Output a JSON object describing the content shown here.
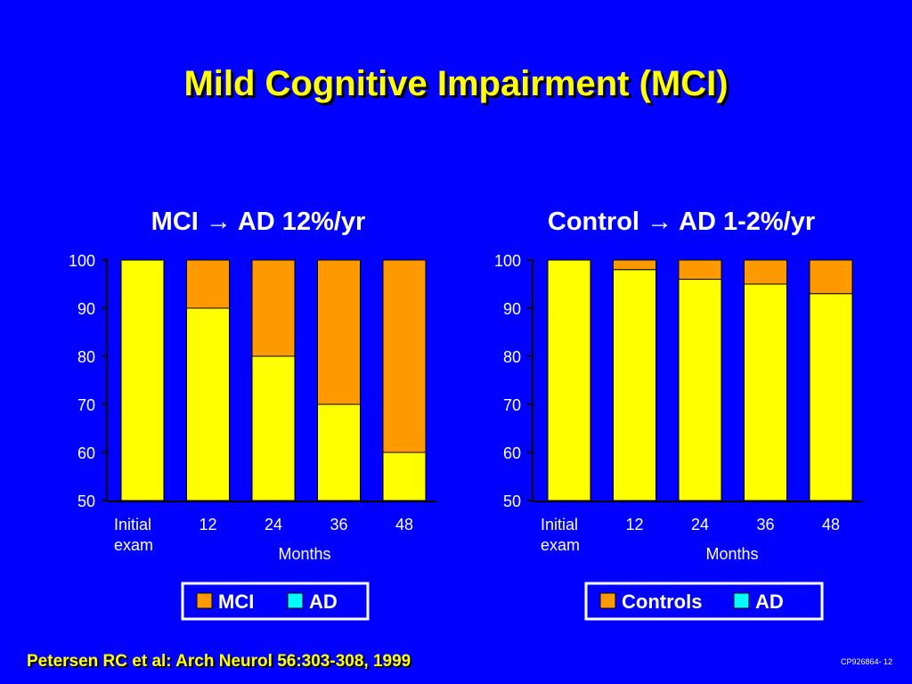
{
  "slide": {
    "title": "Mild Cognitive Impairment (MCI)",
    "footer": "Petersen RC et al: Arch Neurol 56:303-308, 1999",
    "code": "CP926864- 12"
  },
  "colors": {
    "background": "#0000ff",
    "title": "#ffff00",
    "bar_bottom": "#ffff00",
    "bar_top": "#ff9900",
    "legend_ad": "#00ffff"
  },
  "chart_data": [
    {
      "type": "bar",
      "stacked": true,
      "title": "MCI → AD 12%/yr",
      "categories": [
        "Initial\nexam",
        "12",
        "24",
        "36",
        "48"
      ],
      "xlabel": "Months",
      "ylabel": "",
      "ylim": [
        50,
        100
      ],
      "yticks": [
        100,
        90,
        80,
        70,
        60,
        50
      ],
      "values": [
        100,
        90,
        80,
        70,
        60
      ],
      "legend": [
        "MCI",
        "AD"
      ],
      "legend_colors": [
        "#ff9900",
        "#00ffff"
      ]
    },
    {
      "type": "bar",
      "stacked": true,
      "title": "Control → AD 1-2%/yr",
      "categories": [
        "Initial\nexam",
        "12",
        "24",
        "36",
        "48"
      ],
      "xlabel": "Months",
      "ylabel": "",
      "ylim": [
        50,
        100
      ],
      "yticks": [
        100,
        90,
        80,
        70,
        60,
        50
      ],
      "values": [
        100,
        98,
        96,
        95,
        93
      ],
      "legend": [
        "Controls",
        "AD"
      ],
      "legend_colors": [
        "#ff9900",
        "#00ffff"
      ]
    }
  ]
}
